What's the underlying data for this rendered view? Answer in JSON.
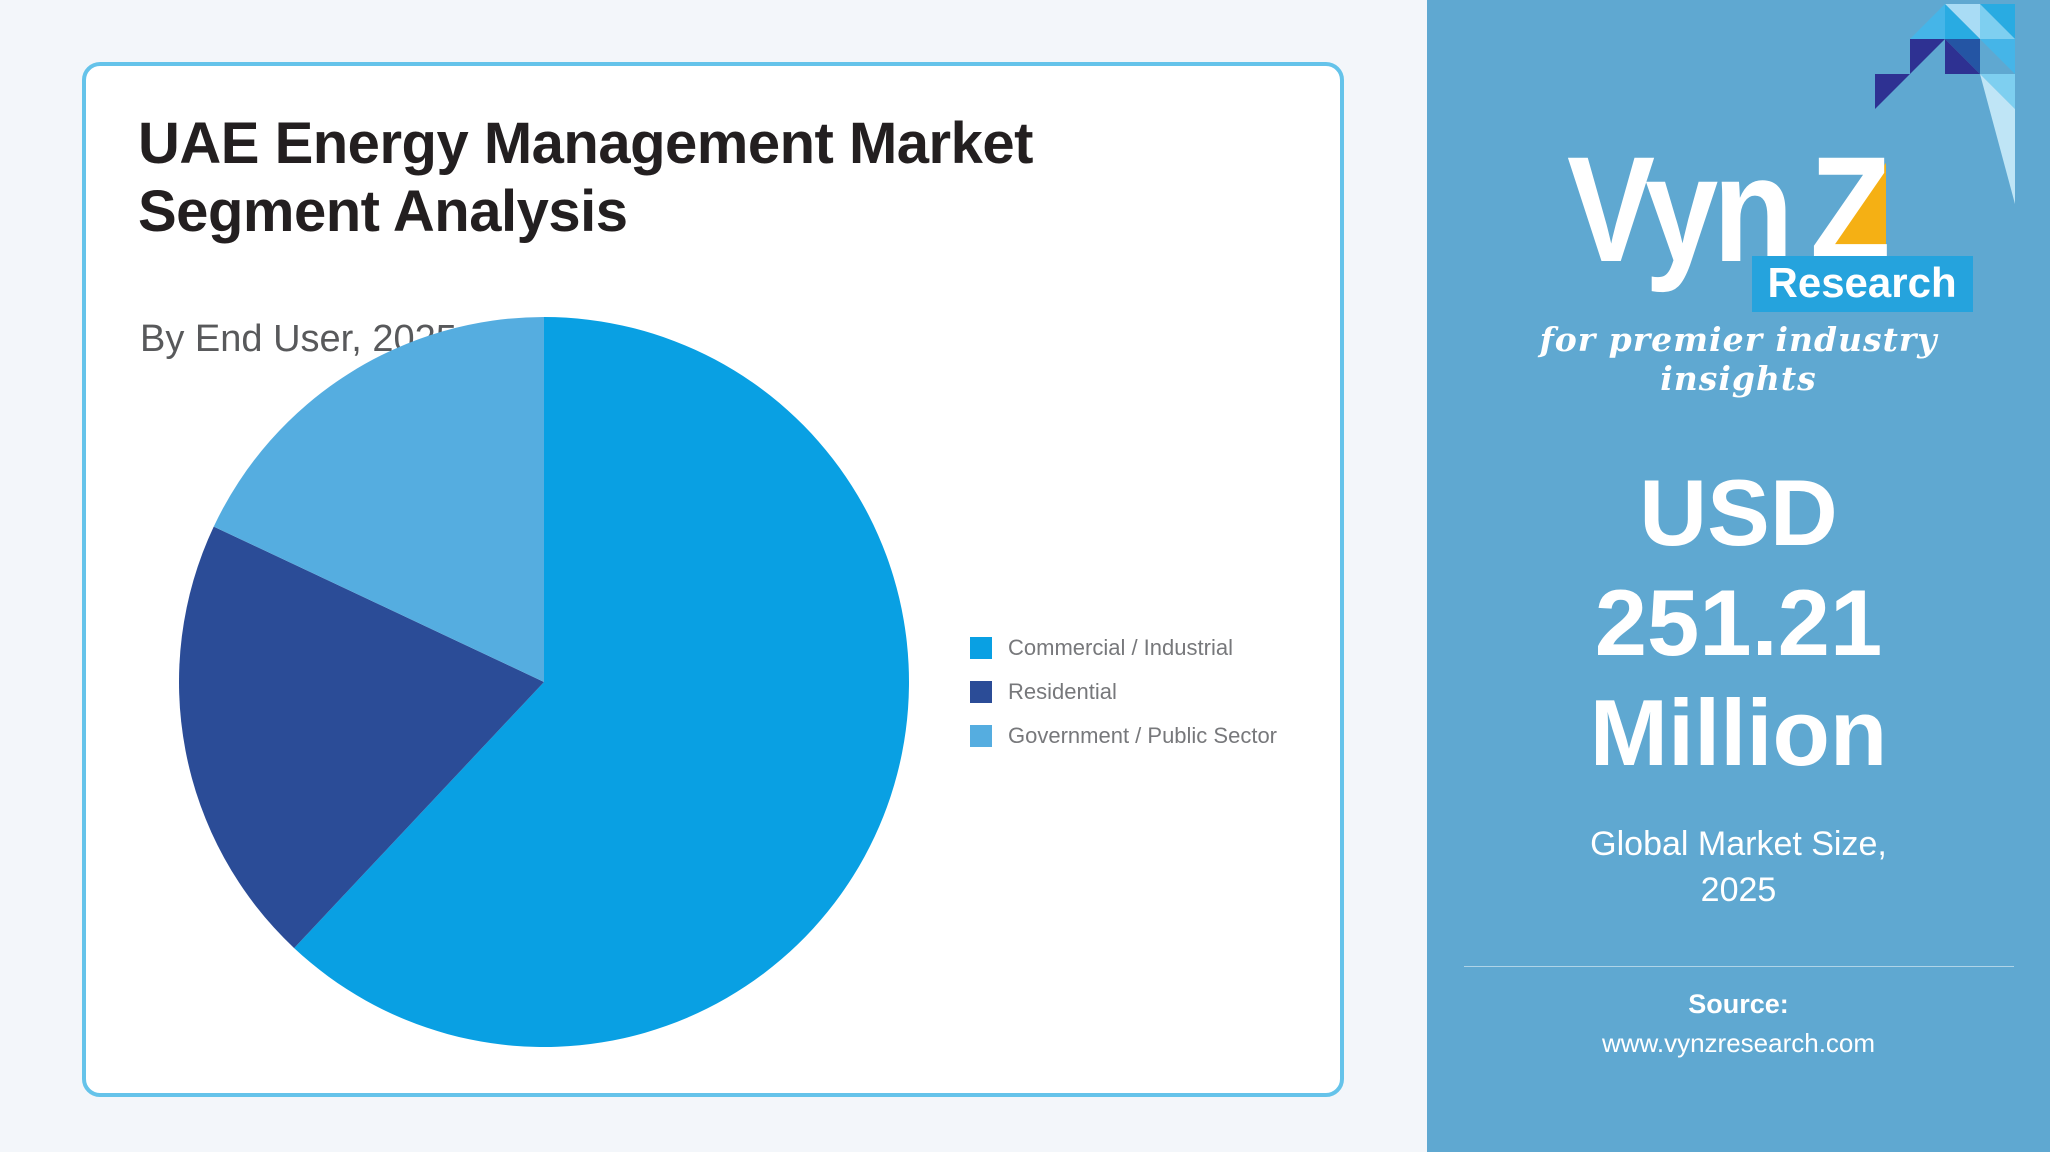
{
  "page": {
    "background": "#f3f6fa"
  },
  "card": {
    "border_color": "#65c3ea",
    "title": "UAE Energy Management Market Segment Analysis",
    "subtitle": "By End User, 2025 (%)"
  },
  "chart_data": {
    "type": "pie",
    "title": "UAE Energy Management Market Segment Analysis",
    "subtitle": "By End User, 2025 (%)",
    "unit": "%",
    "labels": [
      "Commercial / Industrial",
      "Residential",
      "Government / Public Sector"
    ],
    "values": [
      62,
      20,
      18
    ],
    "colors": [
      "#09a0e3",
      "#2b4c97",
      "#55ade0"
    ],
    "start_angle": "12 o'clock",
    "direction": "clockwise",
    "legend_position": "right",
    "data_labels": false
  },
  "sidebar": {
    "background": "#5fa8d1",
    "logo": {
      "brand_prefix": "Vyn",
      "brand_z": "Z",
      "division": "Research",
      "tagline": "for premier industry insights",
      "z_triangle_color": "#f5b014",
      "research_box_color": "#25a3dd",
      "mosaic_colors": [
        "#2e3192",
        "#2455a4",
        "#29abe2",
        "#45b5e8",
        "#7ecff0",
        "#a9dcf5"
      ]
    },
    "market_size": {
      "lines": [
        "USD",
        "251.21",
        "Million"
      ],
      "caption_lines": [
        "Global Market Size,",
        "2025"
      ]
    },
    "source": {
      "label": "Source:",
      "url": "www.vynzresearch.com"
    }
  }
}
